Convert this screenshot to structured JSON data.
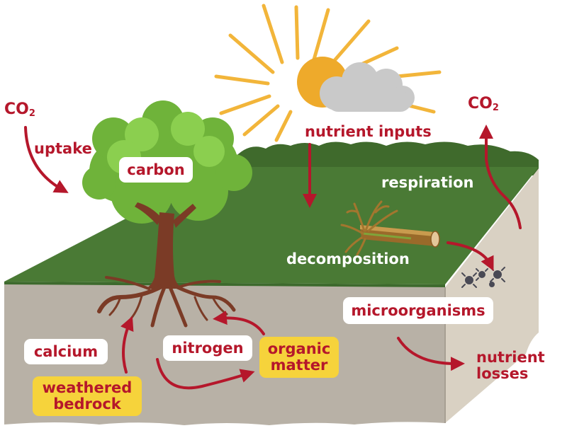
{
  "labels": {
    "co2_left_main": "CO",
    "co2_left_sub": "2",
    "co2_right_main": "CO",
    "co2_right_sub": "2",
    "uptake": "uptake",
    "carbon": "carbon",
    "nutrient_inputs": "nutrient inputs",
    "respiration": "respiration",
    "decomposition": "decomposition",
    "microorganisms": "microorganisms",
    "calcium": "calcium",
    "nitrogen": "nitrogen",
    "organic_matter_line1": "organic",
    "organic_matter_line2": "matter",
    "weathered_bedrock_line1": "weathered",
    "weathered_bedrock_line2": "bedrock",
    "nutrient_losses_line1": "nutrient",
    "nutrient_losses_line2": "losses"
  },
  "colors": {
    "arrow_red": "#b5172b",
    "label_yellow": "#f6d33b",
    "grass_green": "#4a7a35",
    "soil_front": "#b8b1a6",
    "soil_side": "#d9d1c3",
    "sun_orange": "#eeaa2b",
    "cloud_grey": "#c9c9c9",
    "tree_green": "#7cc143",
    "trunk_brown": "#7b3b26"
  },
  "icons": [
    "sun-icon",
    "cloud-icon",
    "tree-icon",
    "fallen-log-icon",
    "microbe-icon"
  ]
}
